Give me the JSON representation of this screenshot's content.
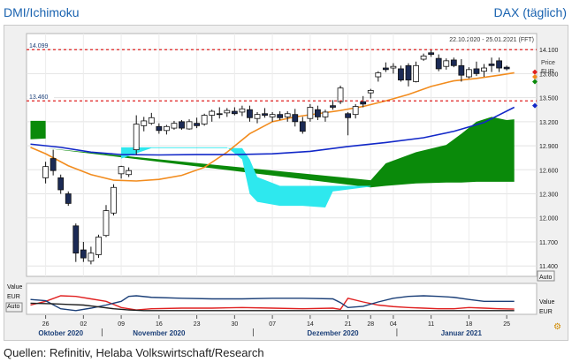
{
  "header": {
    "left_title": "DMI/Ichimoku",
    "right_title": "DAX (täglich)"
  },
  "footer": {
    "source": "Quellen: Refinitiv, Helaba Volkswirtschaft/Research"
  },
  "chart_data": {
    "type": "candlestick",
    "date_range": "22.10.2020 - 25.01.2021 (FFT)",
    "price_axis": {
      "title": "Price",
      "unit": "EUR",
      "ticks": [
        {
          "value": 14100,
          "label": "14.100"
        },
        {
          "value": 13800,
          "label": "13.800"
        },
        {
          "value": 13500,
          "label": "13.500"
        },
        {
          "value": 13200,
          "label": "13.200"
        },
        {
          "value": 12900,
          "label": "12.900"
        },
        {
          "value": 12600,
          "label": "12.600"
        },
        {
          "value": 12300,
          "label": "12.300"
        },
        {
          "value": 12000,
          "label": "12.000"
        },
        {
          "value": 11700,
          "label": "11.700"
        },
        {
          "value": 11400,
          "label": "11.400"
        }
      ],
      "range": [
        11270,
        14300
      ],
      "button": "Auto"
    },
    "reference_lines": [
      {
        "value": 14099,
        "label": "14.099",
        "color": "#e02020"
      },
      {
        "value": 13460,
        "label": "13.460",
        "color": "#e02020"
      }
    ],
    "x_axis": {
      "day_ticks": [
        {
          "x": 0,
          "label": "26"
        },
        {
          "x": 5,
          "label": "02"
        },
        {
          "x": 10,
          "label": "09"
        },
        {
          "x": 15,
          "label": "16"
        },
        {
          "x": 20,
          "label": "23"
        },
        {
          "x": 25,
          "label": "30"
        },
        {
          "x": 30,
          "label": "07"
        },
        {
          "x": 35,
          "label": "14"
        },
        {
          "x": 40,
          "label": "21"
        },
        {
          "x": 43,
          "label": "28"
        },
        {
          "x": 46,
          "label": "04"
        },
        {
          "x": 51,
          "label": "11"
        },
        {
          "x": 56,
          "label": "18"
        },
        {
          "x": 61,
          "label": "25"
        }
      ],
      "months": [
        {
          "x": 2,
          "label": "Oktober 2020"
        },
        {
          "x": 15,
          "label": "November 2020"
        },
        {
          "x": 38,
          "label": "Dezember 2020"
        },
        {
          "x": 55,
          "label": "Januar 2021"
        }
      ]
    },
    "candles": [
      {
        "o": 12500,
        "h": 12700,
        "l": 12430,
        "c": 12640
      },
      {
        "o": 12740,
        "h": 12850,
        "l": 12530,
        "c": 12590
      },
      {
        "o": 12500,
        "h": 12540,
        "l": 12300,
        "c": 12350
      },
      {
        "o": 12300,
        "h": 12330,
        "l": 12150,
        "c": 12180
      },
      {
        "o": 11900,
        "h": 11930,
        "l": 11450,
        "c": 11560
      },
      {
        "o": 11600,
        "h": 11700,
        "l": 11450,
        "c": 11500
      },
      {
        "o": 11460,
        "h": 11640,
        "l": 11420,
        "c": 11560
      },
      {
        "o": 11540,
        "h": 11790,
        "l": 11500,
        "c": 11760
      },
      {
        "o": 11780,
        "h": 12160,
        "l": 11760,
        "c": 12090
      },
      {
        "o": 12060,
        "h": 12420,
        "l": 12030,
        "c": 12380
      },
      {
        "o": 12550,
        "h": 12650,
        "l": 12490,
        "c": 12640
      },
      {
        "o": 12540,
        "h": 12630,
        "l": 12510,
        "c": 12590
      },
      {
        "o": 12850,
        "h": 13280,
        "l": 12790,
        "c": 13170
      },
      {
        "o": 13150,
        "h": 13260,
        "l": 13080,
        "c": 13210
      },
      {
        "o": 13180,
        "h": 13310,
        "l": 13160,
        "c": 13250
      },
      {
        "o": 13140,
        "h": 13180,
        "l": 13050,
        "c": 13090
      },
      {
        "o": 13090,
        "h": 13160,
        "l": 13040,
        "c": 13140
      },
      {
        "o": 13120,
        "h": 13210,
        "l": 13100,
        "c": 13180
      },
      {
        "o": 13200,
        "h": 13220,
        "l": 13100,
        "c": 13120
      },
      {
        "o": 13110,
        "h": 13230,
        "l": 13100,
        "c": 13200
      },
      {
        "o": 13180,
        "h": 13250,
        "l": 13120,
        "c": 13150
      },
      {
        "o": 13170,
        "h": 13300,
        "l": 13150,
        "c": 13280
      },
      {
        "o": 13280,
        "h": 13350,
        "l": 13200,
        "c": 13330
      },
      {
        "o": 13300,
        "h": 13380,
        "l": 13240,
        "c": 13290
      },
      {
        "o": 13310,
        "h": 13370,
        "l": 13260,
        "c": 13340
      },
      {
        "o": 13330,
        "h": 13380,
        "l": 13280,
        "c": 13300
      },
      {
        "o": 13320,
        "h": 13400,
        "l": 13270,
        "c": 13360
      },
      {
        "o": 13350,
        "h": 13400,
        "l": 13200,
        "c": 13250
      },
      {
        "o": 13240,
        "h": 13320,
        "l": 13180,
        "c": 13290
      },
      {
        "o": 13300,
        "h": 13370,
        "l": 13250,
        "c": 13280
      },
      {
        "o": 13260,
        "h": 13320,
        "l": 13200,
        "c": 13290
      },
      {
        "o": 13290,
        "h": 13330,
        "l": 13220,
        "c": 13250
      },
      {
        "o": 13260,
        "h": 13330,
        "l": 13200,
        "c": 13300
      },
      {
        "o": 13290,
        "h": 13360,
        "l": 13140,
        "c": 13200
      },
      {
        "o": 13200,
        "h": 13260,
        "l": 13050,
        "c": 13080
      },
      {
        "o": 13240,
        "h": 13420,
        "l": 13200,
        "c": 13380
      },
      {
        "o": 13350,
        "h": 13400,
        "l": 13220,
        "c": 13260
      },
      {
        "o": 13260,
        "h": 13350,
        "l": 13200,
        "c": 13320
      },
      {
        "o": 13400,
        "h": 13470,
        "l": 13350,
        "c": 13380
      },
      {
        "o": 13450,
        "h": 13650,
        "l": 13420,
        "c": 13620
      },
      {
        "o": 13300,
        "h": 13320,
        "l": 13030,
        "c": 13250
      },
      {
        "o": 13290,
        "h": 13420,
        "l": 13240,
        "c": 13390
      },
      {
        "o": 13450,
        "h": 13520,
        "l": 13380,
        "c": 13420
      },
      {
        "o": 13560,
        "h": 13610,
        "l": 13490,
        "c": 13590
      },
      {
        "o": 13760,
        "h": 13830,
        "l": 13700,
        "c": 13810
      },
      {
        "o": 13870,
        "h": 13940,
        "l": 13820,
        "c": 13850
      },
      {
        "o": 13870,
        "h": 13930,
        "l": 13800,
        "c": 13890
      },
      {
        "o": 13860,
        "h": 13900,
        "l": 13700,
        "c": 13720
      },
      {
        "o": 13900,
        "h": 13930,
        "l": 13640,
        "c": 13720
      },
      {
        "o": 13700,
        "h": 13950,
        "l": 13690,
        "c": 13900
      },
      {
        "o": 13980,
        "h": 14050,
        "l": 13960,
        "c": 14020
      },
      {
        "o": 14060,
        "h": 14100,
        "l": 14010,
        "c": 14040
      },
      {
        "o": 13990,
        "h": 14040,
        "l": 13830,
        "c": 13860
      },
      {
        "o": 13890,
        "h": 13990,
        "l": 13850,
        "c": 13960
      },
      {
        "o": 13970,
        "h": 14000,
        "l": 13880,
        "c": 13900
      },
      {
        "o": 13900,
        "h": 13980,
        "l": 13700,
        "c": 13780
      },
      {
        "o": 13760,
        "h": 13880,
        "l": 13740,
        "c": 13850
      },
      {
        "o": 13860,
        "h": 13950,
        "l": 13770,
        "c": 13800
      },
      {
        "o": 13830,
        "h": 13920,
        "l": 13760,
        "c": 13870
      },
      {
        "o": 13920,
        "h": 14000,
        "l": 13820,
        "c": 13900
      },
      {
        "o": 13960,
        "h": 14000,
        "l": 13820,
        "c": 13870
      },
      {
        "o": 13880,
        "h": 13900,
        "l": 13840,
        "c": 13860
      }
    ],
    "lines": [
      {
        "color": "#f28c1e",
        "points": [
          [
            -2,
            12880
          ],
          [
            0,
            12800
          ],
          [
            3,
            12650
          ],
          [
            6,
            12540
          ],
          [
            9,
            12470
          ],
          [
            12,
            12460
          ],
          [
            15,
            12480
          ],
          [
            18,
            12530
          ],
          [
            21,
            12630
          ],
          [
            24,
            12820
          ],
          [
            27,
            13050
          ],
          [
            30,
            13200
          ],
          [
            33,
            13260
          ],
          [
            36,
            13300
          ],
          [
            39,
            13340
          ],
          [
            42,
            13390
          ],
          [
            45,
            13460
          ],
          [
            48,
            13540
          ],
          [
            51,
            13640
          ],
          [
            54,
            13710
          ],
          [
            57,
            13740
          ],
          [
            60,
            13780
          ],
          [
            62,
            13810
          ]
        ]
      },
      {
        "color": "#1228c8",
        "points": [
          [
            -2,
            12920
          ],
          [
            2,
            12880
          ],
          [
            6,
            12820
          ],
          [
            10,
            12790
          ],
          [
            15,
            12785
          ],
          [
            20,
            12790
          ],
          [
            25,
            12790
          ],
          [
            30,
            12800
          ],
          [
            35,
            12830
          ],
          [
            40,
            12890
          ],
          [
            45,
            12940
          ],
          [
            50,
            13000
          ],
          [
            54,
            13080
          ],
          [
            58,
            13190
          ],
          [
            62,
            13380
          ]
        ]
      }
    ],
    "cloud_bullish": [
      {
        "x": -2,
        "top": 13210,
        "bot": 12980
      },
      {
        "x": 0,
        "top": 13210,
        "bot": 12990
      },
      {
        "x": 0.01,
        "top": 12870,
        "bot": 12870
      },
      {
        "x": 43,
        "top": 12470,
        "bot": 12380
      },
      {
        "x": 45,
        "top": 12680,
        "bot": 12400
      },
      {
        "x": 49,
        "top": 12820,
        "bot": 12430
      },
      {
        "x": 53,
        "top": 12910,
        "bot": 12440
      },
      {
        "x": 55,
        "top": 13050,
        "bot": 12440
      },
      {
        "x": 57,
        "top": 13200,
        "bot": 12450
      },
      {
        "x": 59,
        "top": 13260,
        "bot": 12450
      },
      {
        "x": 61,
        "top": 13220,
        "bot": 12450
      },
      {
        "x": 62,
        "top": 13230,
        "bot": 12450
      }
    ],
    "cloud_bearish": [
      {
        "x": 10,
        "top": 12880,
        "bot": 12740
      },
      {
        "x": 14,
        "top": 12880,
        "bot": 12870
      },
      {
        "x": 16,
        "top": 12880,
        "bot": 12870
      },
      {
        "x": 20,
        "top": 12880,
        "bot": 12870
      },
      {
        "x": 24,
        "top": 12880,
        "bot": 12870
      },
      {
        "x": 26,
        "top": 12730,
        "bot": 12870
      },
      {
        "x": 27,
        "top": 12300,
        "bot": 12730
      },
      {
        "x": 28,
        "top": 12200,
        "bot": 12510
      },
      {
        "x": 31,
        "top": 12150,
        "bot": 12400
      },
      {
        "x": 34,
        "top": 12150,
        "bot": 12400
      },
      {
        "x": 37,
        "top": 12130,
        "bot": 12400
      },
      {
        "x": 38,
        "top": 12330,
        "bot": 12400
      },
      {
        "x": 43,
        "top": 12390,
        "bot": 12400
      }
    ],
    "right_markers": [
      {
        "value": 13820,
        "color": "#e02020"
      },
      {
        "value": 13760,
        "color": "#f28c1e"
      },
      {
        "value": 13700,
        "color": "#0a8a0a"
      },
      {
        "value": 13400,
        "color": "#1228c8"
      }
    ],
    "dmi_panel": {
      "labels": [
        "Value",
        "EUR",
        "Auto"
      ],
      "right_labels": [
        "Value",
        "EUR"
      ],
      "range": [
        0,
        100
      ],
      "series": [
        {
          "color": "#e02020",
          "points": [
            [
              -2,
              30
            ],
            [
              0,
              42
            ],
            [
              2,
              60
            ],
            [
              4,
              58
            ],
            [
              6,
              50
            ],
            [
              8,
              42
            ],
            [
              10,
              22
            ],
            [
              12,
              14
            ],
            [
              14,
              18
            ],
            [
              18,
              20
            ],
            [
              22,
              20
            ],
            [
              26,
              22
            ],
            [
              30,
              20
            ],
            [
              34,
              18
            ],
            [
              38,
              20
            ],
            [
              39,
              16
            ],
            [
              40,
              52
            ],
            [
              42,
              40
            ],
            [
              44,
              30
            ],
            [
              46,
              25
            ],
            [
              48,
              22
            ],
            [
              50,
              20
            ],
            [
              52,
              18
            ],
            [
              54,
              18
            ],
            [
              56,
              22
            ],
            [
              58,
              20
            ],
            [
              60,
              18
            ],
            [
              62,
              17
            ]
          ]
        },
        {
          "color": "#1b3f78",
          "points": [
            [
              -2,
              48
            ],
            [
              0,
              44
            ],
            [
              2,
              18
            ],
            [
              4,
              12
            ],
            [
              6,
              20
            ],
            [
              8,
              30
            ],
            [
              10,
              42
            ],
            [
              11,
              58
            ],
            [
              12,
              60
            ],
            [
              14,
              55
            ],
            [
              18,
              52
            ],
            [
              22,
              50
            ],
            [
              26,
              50
            ],
            [
              30,
              52
            ],
            [
              34,
              52
            ],
            [
              38,
              50
            ],
            [
              39,
              38
            ],
            [
              40,
              22
            ],
            [
              42,
              26
            ],
            [
              44,
              40
            ],
            [
              46,
              52
            ],
            [
              48,
              58
            ],
            [
              50,
              60
            ],
            [
              52,
              58
            ],
            [
              54,
              55
            ],
            [
              56,
              48
            ],
            [
              58,
              42
            ],
            [
              60,
              42
            ],
            [
              62,
              42
            ]
          ]
        },
        {
          "color": "#1e1e1e",
          "points": [
            [
              -2,
              36
            ],
            [
              1,
              34
            ],
            [
              3,
              32
            ],
            [
              5,
              30
            ],
            [
              7,
              24
            ],
            [
              9,
              18
            ],
            [
              11,
              14
            ],
            [
              13,
              12
            ],
            [
              16,
              12
            ],
            [
              20,
              12
            ],
            [
              24,
              12
            ],
            [
              28,
              12
            ],
            [
              32,
              12
            ],
            [
              36,
              12
            ],
            [
              39,
              12
            ],
            [
              41,
              12
            ],
            [
              44,
              12
            ],
            [
              47,
              12
            ],
            [
              50,
              12
            ],
            [
              54,
              12
            ],
            [
              58,
              12
            ],
            [
              62,
              12
            ]
          ]
        }
      ]
    }
  }
}
